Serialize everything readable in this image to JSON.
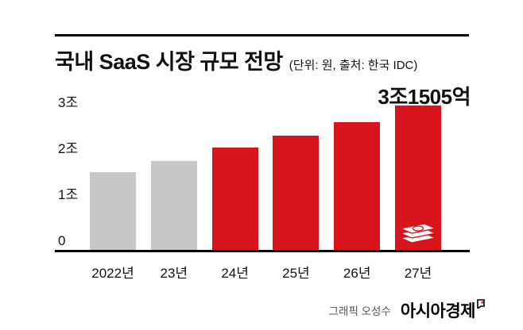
{
  "header": {
    "title": "국내 SaaS 시장 규모 전망",
    "unit_note": "(단위: 원, 출처: 한국 IDC)"
  },
  "chart_data": {
    "type": "bar",
    "title": "국내 SaaS 시장 규모 전망",
    "unit_note": "(단위: 원, 출처: 한국 IDC)",
    "categories": [
      "2022년",
      "23년",
      "24년",
      "25년",
      "26년",
      "27년"
    ],
    "values": [
      1.7,
      1.95,
      2.25,
      2.5,
      2.8,
      3.1505
    ],
    "value_unit": "조 원",
    "bar_colors": [
      "#c7c7c7",
      "#c7c7c7",
      "#d8151c",
      "#d8151c",
      "#d8151c",
      "#d8151c"
    ],
    "annotation": {
      "text": "3조1505억",
      "target": "27년"
    },
    "y_ticks": [
      {
        "value": 0,
        "label": "0"
      },
      {
        "value": 1,
        "label": "1조"
      },
      {
        "value": 2,
        "label": "2조"
      },
      {
        "value": 3,
        "label": "3조"
      }
    ],
    "ylim": [
      0,
      3.3
    ],
    "grid": false,
    "legend": false,
    "icons": {
      "last_bar_icon": "banknotes-icon"
    }
  },
  "footer": {
    "credit": "그래픽 오성수",
    "brand": "아시아경제"
  },
  "colors": {
    "bar_gray": "#c7c7c7",
    "bar_red": "#d8151c",
    "axis_black": "#000000",
    "text_black": "#111111",
    "credit_gray": "#555555"
  }
}
